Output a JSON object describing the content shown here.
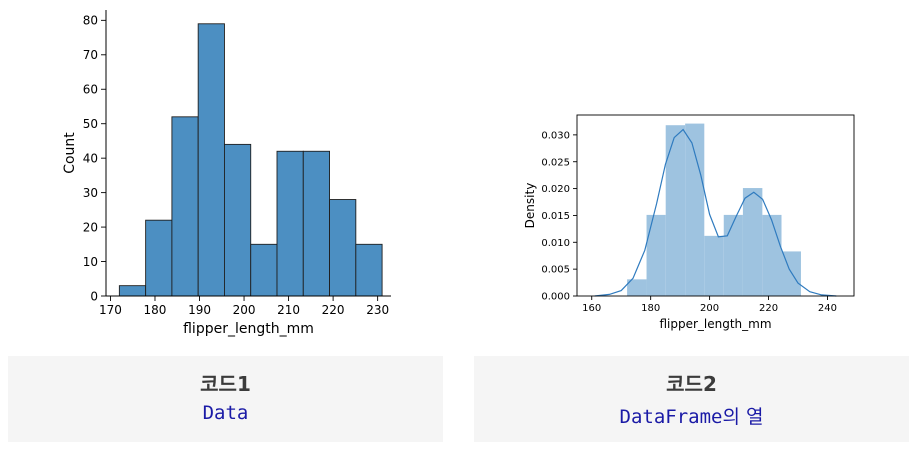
{
  "chart_data": [
    {
      "type": "bar",
      "subtype": "histogram",
      "xlabel": "flipper_length_mm",
      "ylabel": "Count",
      "bins": [
        {
          "x0": 172.0,
          "x1": 177.9,
          "count": 3
        },
        {
          "x0": 177.9,
          "x1": 183.8,
          "count": 22
        },
        {
          "x0": 183.8,
          "x1": 189.7,
          "count": 52
        },
        {
          "x0": 189.7,
          "x1": 195.6,
          "count": 79
        },
        {
          "x0": 195.6,
          "x1": 201.5,
          "count": 44
        },
        {
          "x0": 201.5,
          "x1": 207.4,
          "count": 15
        },
        {
          "x0": 207.4,
          "x1": 213.3,
          "count": 42
        },
        {
          "x0": 213.3,
          "x1": 219.2,
          "count": 42
        },
        {
          "x0": 219.2,
          "x1": 225.1,
          "count": 28
        },
        {
          "x0": 225.1,
          "x1": 231.0,
          "count": 15
        }
      ],
      "xticks": [
        "170",
        "180",
        "190",
        "200",
        "210",
        "220",
        "230"
      ],
      "yticks": [
        "0",
        "10",
        "20",
        "30",
        "40",
        "50",
        "60",
        "70",
        "80"
      ],
      "xlim": [
        169,
        233
      ],
      "ylim": [
        0,
        83
      ],
      "color": "#4c8fc2",
      "edgecolor": "#1f1f1f",
      "style": "despined"
    },
    {
      "type": "bar",
      "subtype": "histogram+kde",
      "xlabel": "flipper_length_mm",
      "ylabel": "Density",
      "bins": [
        {
          "x0": 172.0,
          "x1": 178.6,
          "density": 0.0031
        },
        {
          "x0": 178.6,
          "x1": 185.1,
          "density": 0.0151
        },
        {
          "x0": 185.1,
          "x1": 191.7,
          "density": 0.0318
        },
        {
          "x0": 191.7,
          "x1": 198.2,
          "density": 0.0321
        },
        {
          "x0": 198.2,
          "x1": 204.8,
          "density": 0.0112
        },
        {
          "x0": 204.8,
          "x1": 211.3,
          "density": 0.0151
        },
        {
          "x0": 211.3,
          "x1": 217.9,
          "density": 0.0201
        },
        {
          "x0": 217.9,
          "x1": 224.4,
          "density": 0.0151
        },
        {
          "x0": 224.4,
          "x1": 231.0,
          "density": 0.0083
        }
      ],
      "kde": {
        "x": [
          161,
          166,
          170,
          174,
          178,
          182,
          185,
          188,
          191,
          194,
          197,
          200,
          203,
          206,
          209,
          212,
          215,
          218,
          221,
          224,
          227,
          230,
          234,
          238,
          243
        ],
        "y": [
          0.0,
          0.0003,
          0.001,
          0.0033,
          0.0085,
          0.0172,
          0.0245,
          0.0295,
          0.031,
          0.0285,
          0.0225,
          0.0152,
          0.011,
          0.0112,
          0.0148,
          0.0182,
          0.0193,
          0.018,
          0.0142,
          0.0093,
          0.005,
          0.0024,
          0.0008,
          0.0002,
          0.0
        ]
      },
      "xticks": [
        "160",
        "180",
        "200",
        "220",
        "240"
      ],
      "yticks": [
        "0.000",
        "0.005",
        "0.010",
        "0.015",
        "0.020",
        "0.025",
        "0.030"
      ],
      "xlim": [
        155,
        249
      ],
      "ylim": [
        0,
        0.0337
      ],
      "color": "#9ec3e0",
      "line_color": "#2f7bbf",
      "style": "boxed"
    }
  ],
  "cards": [
    {
      "title": "코드1",
      "caption_code": "Data",
      "caption_suffix": ""
    },
    {
      "title": "코드2",
      "caption_code": "DataFrame",
      "caption_suffix": "의 열"
    }
  ]
}
